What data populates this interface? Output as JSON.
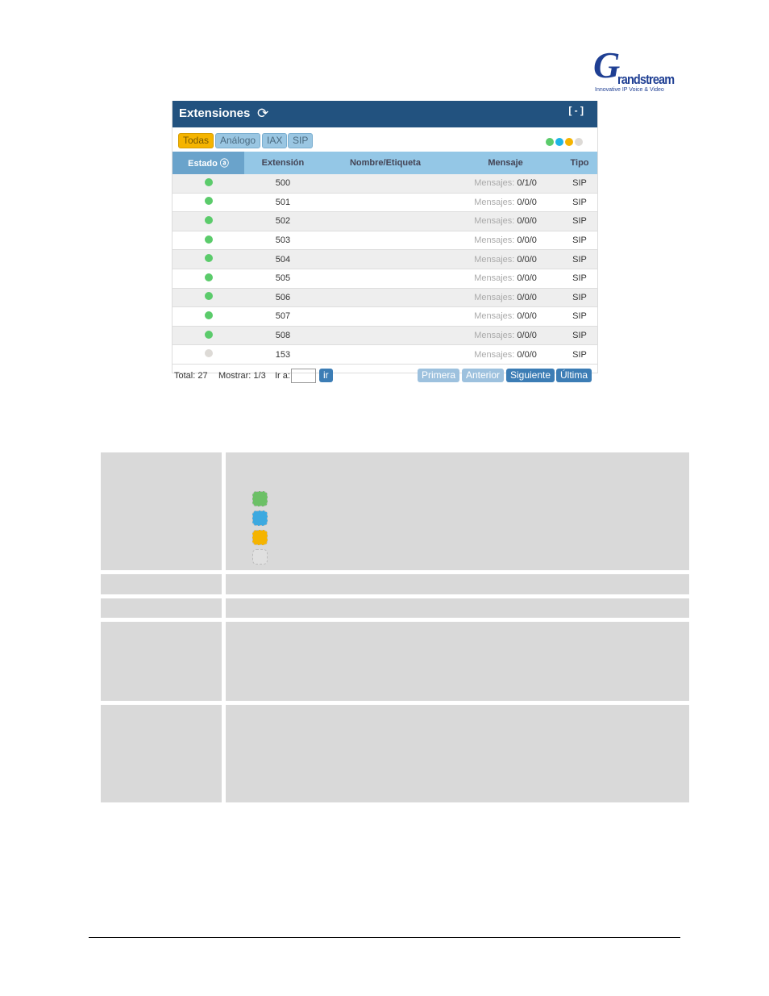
{
  "logo": {
    "text": "Grandstream",
    "tagline": "Innovative IP Voice & Video"
  },
  "panel": {
    "title": "Extensiones",
    "refresh_icon": "refresh-icon",
    "collapse": "[ - ]"
  },
  "filters": [
    "Todas",
    "Análogo",
    "IAX",
    "SIP"
  ],
  "status_colors": [
    "#5bcb6b",
    "#1eb4e6",
    "#f5b400",
    "#dddad6"
  ],
  "columns": [
    "Estado",
    "Extensión",
    "Nombre/Etiqueta",
    "Mensaje",
    "Tipo"
  ],
  "msg_label": "Mensajes:",
  "rows": [
    {
      "status": "#5bcb6b",
      "ext": "500",
      "name": "",
      "msg": "0/1/0",
      "type": "SIP"
    },
    {
      "status": "#5bcb6b",
      "ext": "501",
      "name": "",
      "msg": "0/0/0",
      "type": "SIP"
    },
    {
      "status": "#5bcb6b",
      "ext": "502",
      "name": "",
      "msg": "0/0/0",
      "type": "SIP"
    },
    {
      "status": "#5bcb6b",
      "ext": "503",
      "name": "",
      "msg": "0/0/0",
      "type": "SIP"
    },
    {
      "status": "#5bcb6b",
      "ext": "504",
      "name": "",
      "msg": "0/0/0",
      "type": "SIP"
    },
    {
      "status": "#5bcb6b",
      "ext": "505",
      "name": "",
      "msg": "0/0/0",
      "type": "SIP"
    },
    {
      "status": "#5bcb6b",
      "ext": "506",
      "name": "",
      "msg": "0/0/0",
      "type": "SIP"
    },
    {
      "status": "#5bcb6b",
      "ext": "507",
      "name": "",
      "msg": "0/0/0",
      "type": "SIP"
    },
    {
      "status": "#5bcb6b",
      "ext": "508",
      "name": "",
      "msg": "0/0/0",
      "type": "SIP"
    },
    {
      "status": "#dddad6",
      "ext": "153",
      "name": "",
      "msg": "0/0/0",
      "type": "SIP"
    }
  ],
  "footer": {
    "total": "Total: 27",
    "show": "Mostrar: 1/3",
    "goto": "Ir a:",
    "go": "ir",
    "first": "Primera",
    "prev": "Anterior",
    "next": "Siguiente",
    "last": "Última"
  },
  "legend_colors": [
    "#6cc066",
    "#3ca9e0",
    "#f5b400",
    "#e0e0e0"
  ]
}
